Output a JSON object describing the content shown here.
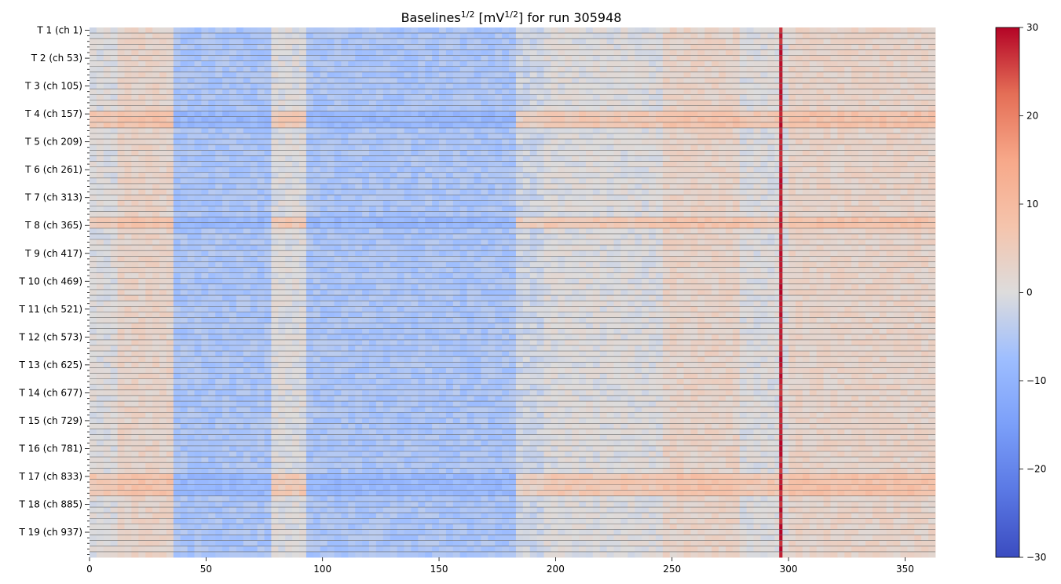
{
  "chart_data": {
    "type": "heatmap",
    "title_prefix": "Baselines",
    "title_sup1": "1/2",
    "title_mid": " [mV",
    "title_sup2": "1/2",
    "title_suffix": "] for run 305948",
    "x_ticks": [
      0,
      50,
      100,
      150,
      200,
      250,
      300,
      350
    ],
    "xlim": [
      0,
      363
    ],
    "y_tick_labels": [
      "T 1 (ch 1)",
      "T 2 (ch 53)",
      "T 3 (ch 105)",
      "T 4 (ch 157)",
      "T 5 (ch 209)",
      "T 6 (ch 261)",
      "T 7 (ch 313)",
      "T 8 (ch 365)",
      "T 9 (ch 417)",
      "T 10 (ch 469)",
      "T 11 (ch 521)",
      "T 12 (ch 573)",
      "T 13 (ch 625)",
      "T 14 (ch 677)",
      "T 15 (ch 729)",
      "T 16 (ch 781)",
      "T 17 (ch 833)",
      "T 18 (ch 885)",
      "T 19 (ch 937)"
    ],
    "rows": 95,
    "rows_per_label": 5,
    "colorbar": {
      "min": -30,
      "max": 30,
      "ticks": [
        30,
        20,
        10,
        0,
        -10,
        -20,
        -30
      ],
      "colormap": "coolwarm"
    },
    "hot_column": 296,
    "blue_column_bands": [
      [
        36,
        77
      ],
      [
        91,
        180
      ],
      [
        120,
        124
      ]
    ],
    "warm_column_bands": [
      [
        10,
        34
      ],
      [
        246,
        276
      ],
      [
        298,
        363
      ]
    ],
    "strong_warm_row_groups": [
      15,
      16,
      17,
      34,
      35,
      80,
      81,
      82,
      83
    ],
    "bright_spot_rows": [
      46,
      47,
      74,
      75,
      89,
      90
    ]
  }
}
